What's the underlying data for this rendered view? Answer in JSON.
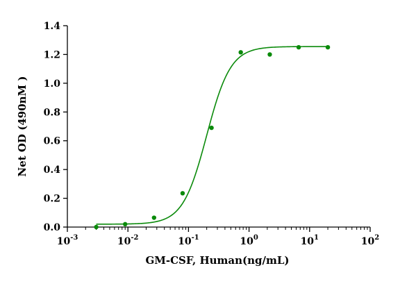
{
  "chart_data": {
    "type": "scatter",
    "title": "",
    "xlabel": "GM-CSF, Human(ng/mL)",
    "ylabel": "Net OD (490nM )",
    "x_scale": "log",
    "xlim": [
      0.001,
      100
    ],
    "ylim": [
      0.0,
      1.4
    ],
    "grid": false,
    "legend": "none",
    "x_ticks": [
      {
        "base": "10",
        "exp": "-3"
      },
      {
        "base": "10",
        "exp": "-2"
      },
      {
        "base": "10",
        "exp": "-1"
      },
      {
        "base": "10",
        "exp": "0"
      },
      {
        "base": "10",
        "exp": "1"
      },
      {
        "base": "10",
        "exp": "2"
      }
    ],
    "y_ticks": [
      "0.0",
      "0.2",
      "0.4",
      "0.6",
      "0.8",
      "1.0",
      "1.2",
      "1.4"
    ],
    "series": [
      {
        "color": "#0a8a0a",
        "x": [
          0.003,
          0.009,
          0.027,
          0.08,
          0.24,
          0.73,
          2.2,
          6.6,
          20
        ],
        "y": [
          0.0,
          0.02,
          0.065,
          0.235,
          0.69,
          1.215,
          1.2,
          1.25,
          1.25
        ]
      }
    ],
    "fit_curve": {
      "color": "#0a8a0a",
      "model": "4PL",
      "bottom": 0.02,
      "top": 1.255,
      "ec50": 0.2,
      "hill": 2.2,
      "x_range": [
        0.003,
        20
      ]
    }
  }
}
